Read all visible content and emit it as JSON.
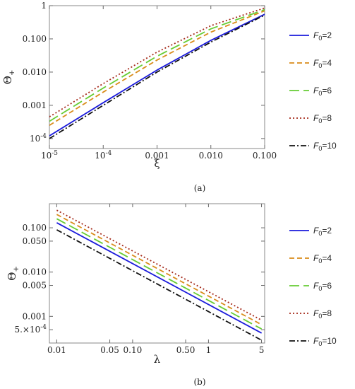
{
  "chart_data": [
    {
      "type": "line",
      "panel": "(a)",
      "xlabel": "ξ",
      "ylabel": "Θ+",
      "x_scale": "log",
      "y_scale": "log",
      "xlim": [
        1e-05,
        0.1
      ],
      "ylim": [
        5e-05,
        1
      ],
      "x_ticks": [
        "10^-5",
        "10^-4",
        "0.001",
        "0.010",
        "0.100"
      ],
      "x_tick_values": [
        1e-05,
        0.0001,
        0.001,
        0.01,
        0.1
      ],
      "y_ticks": [
        "10^-4",
        "0.001",
        "0.010",
        "0.100",
        "1"
      ],
      "y_tick_values": [
        0.0001,
        0.001,
        0.01,
        0.1,
        1
      ],
      "legend_position": "right",
      "x": [
        1e-05,
        0.0001,
        0.001,
        0.01,
        0.1
      ],
      "series": [
        {
          "name": "F0=2",
          "color": "#1a1adb",
          "dash": "solid",
          "values": [
            0.00012,
            0.0012,
            0.0115,
            0.09,
            0.55
          ]
        },
        {
          "name": "F0=4",
          "color": "#d98c1a",
          "dash": "short",
          "values": [
            0.00025,
            0.0025,
            0.023,
            0.16,
            0.7
          ]
        },
        {
          "name": "F0=6",
          "color": "#66cc33",
          "dash": "long",
          "values": [
            0.00033,
            0.0033,
            0.03,
            0.2,
            0.76
          ]
        },
        {
          "name": "F0=8",
          "color": "#a52a1a",
          "dash": "dotted",
          "values": [
            0.00045,
            0.0045,
            0.04,
            0.25,
            0.85
          ]
        },
        {
          "name": "F0=10",
          "color": "#111111",
          "dash": "dashdot",
          "values": [
            0.0001,
            0.001,
            0.01,
            0.08,
            0.52
          ]
        }
      ]
    },
    {
      "type": "line",
      "panel": "(b)",
      "xlabel": "λ",
      "ylabel": "Θ+",
      "x_scale": "log",
      "y_scale": "log",
      "xlim": [
        0.008,
        5.5
      ],
      "ylim": [
        0.00025,
        0.35
      ],
      "x_ticks": [
        "0.01",
        "0.05",
        "0.10",
        "0.50",
        "1",
        "5"
      ],
      "x_tick_values": [
        0.01,
        0.05,
        0.1,
        0.5,
        1,
        5
      ],
      "y_ticks": [
        "5.×10^-4",
        "0.001",
        "0.005",
        "0.010",
        "0.050",
        "0.100"
      ],
      "y_tick_values": [
        0.0005,
        0.001,
        0.005,
        0.01,
        0.05,
        0.1
      ],
      "legend_position": "right",
      "x": [
        0.01,
        5
      ],
      "series": [
        {
          "name": "F0=2",
          "color": "#1a1adb",
          "dash": "solid",
          "values": [
            0.13,
            0.00042
          ]
        },
        {
          "name": "F0=4",
          "color": "#d98c1a",
          "dash": "short",
          "values": [
            0.2,
            0.00065
          ]
        },
        {
          "name": "F0=6",
          "color": "#66cc33",
          "dash": "long",
          "values": [
            0.16,
            0.00052
          ]
        },
        {
          "name": "F0=8",
          "color": "#a52a1a",
          "dash": "dotted",
          "values": [
            0.25,
            0.00082
          ]
        },
        {
          "name": "F0=10",
          "color": "#111111",
          "dash": "dashdot",
          "values": [
            0.09,
            0.00029
          ]
        }
      ]
    }
  ]
}
